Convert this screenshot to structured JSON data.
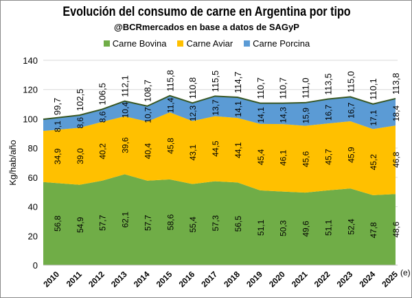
{
  "title": "Evolución del consumo de carne en Argentina por tipo",
  "subtitle": "@BCRmercados en base a datos de SAGyP",
  "chart_data": {
    "type": "area",
    "stacked": true,
    "ylabel": "Kg/hab/año",
    "ylim": [
      0,
      140
    ],
    "yticks": [
      0,
      20,
      40,
      60,
      80,
      100,
      120,
      140
    ],
    "grid": true,
    "legend_position": "top",
    "x_note": "(e)",
    "categories": [
      "2010",
      "2011",
      "2012",
      "2013",
      "2014",
      "2015",
      "2016",
      "2017",
      "2018",
      "2019",
      "2020",
      "2021",
      "2022",
      "2023",
      "2024",
      "2025"
    ],
    "series": [
      {
        "name": "Carne Bovina",
        "color": "#70AD47",
        "values": [
          56.8,
          54.9,
          57.7,
          62.1,
          57.7,
          58.6,
          55.4,
          57.3,
          56.5,
          51.1,
          50.3,
          49.6,
          51.1,
          52.4,
          47.8,
          48.6
        ],
        "labels": [
          "56,8",
          "54,9",
          "57,7",
          "62,1",
          "57,7",
          "58,6",
          "55,4",
          "57,3",
          "56,5",
          "51,1",
          "50,3",
          "49,6",
          "51,1",
          "52,4",
          "47,8",
          "48,6"
        ]
      },
      {
        "name": "Carne Aviar",
        "color": "#FFC000",
        "values": [
          34.9,
          39.0,
          40.2,
          39.6,
          40.4,
          45.8,
          43.1,
          44.5,
          44.1,
          45.4,
          46.1,
          45.6,
          45.7,
          45.9,
          45.2,
          46.8
        ],
        "labels": [
          "34,9",
          "39,0",
          "40,2",
          "39,6",
          "40,4",
          "45,8",
          "43,1",
          "44,5",
          "44,1",
          "45,4",
          "46,1",
          "45,6",
          "45,7",
          "45,9",
          "45,2",
          "46,8"
        ]
      },
      {
        "name": "Carne Porcina",
        "color": "#5B9BD5",
        "values": [
          8.1,
          8.6,
          8.6,
          10.4,
          10.7,
          11.4,
          12.3,
          13.7,
          14.1,
          14.1,
          14.3,
          15.9,
          16.7,
          16.7,
          17.1,
          18.4
        ],
        "labels": [
          "8,1",
          "8,6",
          "8,6",
          "10,4",
          "10,7",
          "11,4",
          "12,3",
          "13,7",
          "14,1",
          "14,1",
          "14,3",
          "15,9",
          "16,7",
          "16,7",
          "17,1",
          "18,4"
        ]
      }
    ],
    "totals": [
      99.7,
      102.5,
      106.5,
      112.1,
      108.7,
      115.8,
      110.8,
      115.5,
      114.7,
      110.7,
      110.7,
      111.0,
      113.5,
      115.0,
      110.1,
      113.8
    ],
    "total_labels": [
      "99,7",
      "102,5",
      "106,5",
      "112,1",
      "108,7",
      "115,8",
      "110,8",
      "115,5",
      "114,7",
      "110,7",
      "110,7",
      "111,0",
      "113,5",
      "115,0",
      "110,1",
      "113,8"
    ],
    "total_line_color": "#375623"
  }
}
